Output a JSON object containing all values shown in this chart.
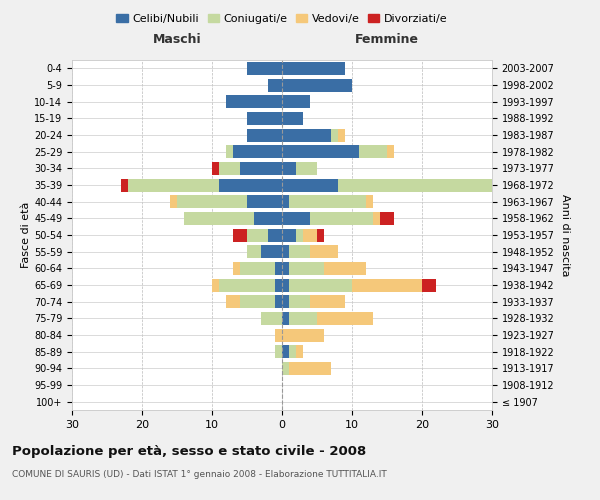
{
  "age_groups": [
    "100+",
    "95-99",
    "90-94",
    "85-89",
    "80-84",
    "75-79",
    "70-74",
    "65-69",
    "60-64",
    "55-59",
    "50-54",
    "45-49",
    "40-44",
    "35-39",
    "30-34",
    "25-29",
    "20-24",
    "15-19",
    "10-14",
    "5-9",
    "0-4"
  ],
  "birth_years": [
    "≤ 1907",
    "1908-1912",
    "1913-1917",
    "1918-1922",
    "1923-1927",
    "1928-1932",
    "1933-1937",
    "1938-1942",
    "1943-1947",
    "1948-1952",
    "1953-1957",
    "1958-1962",
    "1963-1967",
    "1968-1972",
    "1973-1977",
    "1978-1982",
    "1983-1987",
    "1988-1992",
    "1993-1997",
    "1998-2002",
    "2003-2007"
  ],
  "male_celibi": [
    0,
    0,
    0,
    0,
    0,
    0,
    1,
    1,
    1,
    3,
    2,
    4,
    5,
    9,
    6,
    7,
    5,
    5,
    8,
    2,
    5
  ],
  "male_coniugati": [
    0,
    0,
    0,
    1,
    0,
    3,
    5,
    8,
    5,
    2,
    3,
    10,
    10,
    13,
    3,
    1,
    0,
    0,
    0,
    0,
    0
  ],
  "male_vedovi": [
    0,
    0,
    0,
    0,
    1,
    0,
    2,
    1,
    1,
    0,
    0,
    0,
    1,
    0,
    0,
    0,
    0,
    0,
    0,
    0,
    0
  ],
  "male_divorziati": [
    0,
    0,
    0,
    0,
    0,
    0,
    0,
    0,
    0,
    0,
    2,
    0,
    0,
    1,
    1,
    0,
    0,
    0,
    0,
    0,
    0
  ],
  "female_celibi": [
    0,
    0,
    0,
    1,
    0,
    1,
    1,
    1,
    1,
    1,
    2,
    4,
    1,
    8,
    2,
    11,
    7,
    3,
    4,
    10,
    9
  ],
  "female_coniugati": [
    0,
    0,
    1,
    1,
    0,
    4,
    3,
    9,
    5,
    3,
    1,
    9,
    11,
    24,
    3,
    4,
    1,
    0,
    0,
    0,
    0
  ],
  "female_vedovi": [
    0,
    0,
    6,
    1,
    6,
    8,
    5,
    10,
    6,
    4,
    2,
    1,
    1,
    0,
    0,
    1,
    1,
    0,
    0,
    0,
    0
  ],
  "female_divorziati": [
    0,
    0,
    0,
    0,
    0,
    0,
    0,
    2,
    0,
    0,
    1,
    2,
    0,
    0,
    0,
    0,
    0,
    0,
    0,
    0,
    0
  ],
  "color_celibi": "#3a6ea5",
  "color_coniugati": "#c5d9a0",
  "color_vedovi": "#f5c87a",
  "color_divorziati": "#cc2222",
  "title": "Popolazione per età, sesso e stato civile - 2008",
  "subtitle": "COMUNE DI SAURIS (UD) - Dati ISTAT 1° gennaio 2008 - Elaborazione TUTTITALIA.IT",
  "xlabel_left": "Maschi",
  "xlabel_right": "Femmine",
  "ylabel_left": "Fasce di età",
  "ylabel_right": "Anni di nascita",
  "xlim": 30,
  "bg_color": "#f0f0f0",
  "plot_bg": "#ffffff",
  "legend_labels": [
    "Celibi/Nubili",
    "Coniugati/e",
    "Vedovi/e",
    "Divorziati/e"
  ]
}
